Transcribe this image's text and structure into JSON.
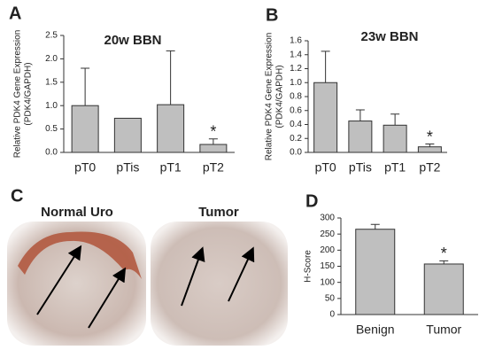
{
  "chart_data": [
    {
      "type": "bar",
      "panel_label": "A",
      "title": "20w BBN",
      "ylabel": [
        "Relative PDK4 Gene Expression",
        "(PDK4/GAPDH)"
      ],
      "categories": [
        "pT0",
        "pTis",
        "pT1",
        "pT2"
      ],
      "values": [
        1.0,
        0.73,
        1.02,
        0.17
      ],
      "errors": [
        0.8,
        null,
        1.15,
        0.12
      ],
      "annotations": [
        null,
        null,
        null,
        "*"
      ],
      "color": "#bfbfbf",
      "ylim": [
        0,
        2.5
      ],
      "yticks": [
        {
          "value": 0,
          "label": "0.0"
        },
        0.5,
        {
          "value": 1,
          "label": "1.0"
        },
        1.5,
        {
          "value": 2,
          "label": "2.0"
        },
        2.5
      ]
    },
    {
      "type": "bar",
      "panel_label": "B",
      "title": "23w BBN",
      "ylabel": [
        "Relative PDK4 Gene Expression",
        "(PDK4/GAPDH)"
      ],
      "categories": [
        "pT0",
        "pTis",
        "pT1",
        "pT2"
      ],
      "values": [
        1.0,
        0.45,
        0.39,
        0.08
      ],
      "errors": [
        0.45,
        0.16,
        0.16,
        0.04
      ],
      "annotations": [
        null,
        null,
        null,
        "*"
      ],
      "color": "#bfbfbf",
      "ylim": [
        0,
        1.6
      ],
      "yticks": [
        {
          "value": 0,
          "label": "0.0"
        },
        0.2,
        0.4,
        0.6,
        0.8,
        {
          "value": 1,
          "label": "1.0"
        },
        1.2,
        1.4,
        1.6
      ]
    },
    {
      "type": "bar",
      "panel_label": "D",
      "ylabel": [
        "H-Score"
      ],
      "categories": [
        "Benign",
        "Tumor"
      ],
      "values": [
        265,
        157
      ],
      "errors": [
        15,
        10
      ],
      "annotations": [
        null,
        "*"
      ],
      "color": "#bfbfbf",
      "ylim": [
        0,
        300
      ],
      "yticks": [
        0,
        50,
        100,
        150,
        200,
        250,
        300
      ]
    }
  ],
  "images": {
    "panel_label": "C",
    "labels": [
      "Normal Uro",
      "Tumor"
    ]
  }
}
